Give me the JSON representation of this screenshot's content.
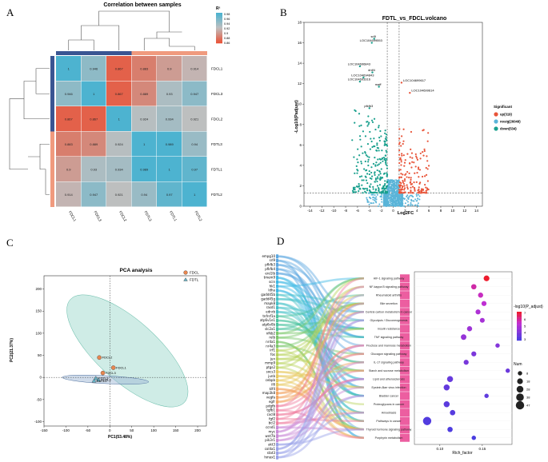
{
  "panels": {
    "A": "A",
    "B": "B",
    "C": "C",
    "D": "D"
  },
  "chart_data": [
    {
      "type": "heatmap",
      "title": "Correlation between samples",
      "legend_title": "R²",
      "legend_ticks": [
        "0.98",
        "0.96",
        "0.94",
        "0.92",
        "0.9",
        "0.88",
        "0.86"
      ],
      "rows": [
        "FDCL1",
        "FDCL3",
        "FDCL2",
        "FDTL3",
        "FDTL1",
        "FDTL2"
      ],
      "cols": [
        "FDCL1",
        "FDCL3",
        "FDCL2",
        "FDTL3",
        "FDTL1",
        "FDTL2"
      ],
      "values": [
        [
          1,
          0.946,
          0.867,
          0.883,
          0.9,
          0.914
        ],
        [
          0.946,
          1,
          0.867,
          0.889,
          0.93,
          0.947
        ],
        [
          0.867,
          0.867,
          1,
          0.924,
          0.934,
          0.921
        ],
        [
          0.883,
          0.889,
          0.924,
          1,
          0.989,
          0.94
        ],
        [
          0.9,
          0.93,
          0.934,
          0.989,
          1,
          0.97
        ],
        [
          0.914,
          0.947,
          0.921,
          0.94,
          0.97,
          1
        ]
      ],
      "colors": {
        "high": "#4db3d0",
        "mid": "#bfbfbf",
        "low": "#e8553a",
        "group1": "#3a5592",
        "group2": "#f09a7e"
      }
    },
    {
      "type": "scatter",
      "title": "FDTL_vs_FDCL.volcano",
      "xlabel": "Log2FC",
      "ylabel": "-Log10(Padjust)",
      "xlim": [
        -15,
        15
      ],
      "ylim": [
        0,
        18
      ],
      "xticks": [
        "-14",
        "-12",
        "-10",
        "-8",
        "-6",
        "-4",
        "-2",
        "0",
        "2",
        "4",
        "6",
        "8",
        "10",
        "12",
        "14"
      ],
      "yticks": [
        "0",
        "2",
        "4",
        "6",
        "8",
        "10",
        "12",
        "14",
        "16",
        "18"
      ],
      "legend_title": "Significant",
      "legend": [
        {
          "label": "up(319)",
          "color": "#e8553a"
        },
        {
          "label": "nosig(26049)",
          "color": "#5ab4d8"
        },
        {
          "label": "down(534)",
          "color": "#1aa08e"
        }
      ],
      "annotations": [
        {
          "text": "srl9",
          "x": -3.2,
          "y": 16.4
        },
        {
          "text": "LOC104699553",
          "x": -3.6,
          "y": 16.0
        },
        {
          "text": "LOC104696843",
          "x": -5.6,
          "y": 13.7
        },
        {
          "text": "dnlf4",
          "x": -3.5,
          "y": 13.1
        },
        {
          "text": "LOC104694843",
          "x": -5.0,
          "y": 12.6
        },
        {
          "text": "LOC104693316",
          "x": -5.6,
          "y": 12.2
        },
        {
          "text": "maff",
          "x": -2.4,
          "y": 11.7
        },
        {
          "text": "LOC104699617",
          "x": 1.4,
          "y": 12.1
        },
        {
          "text": "LOC104699614",
          "x": 2.8,
          "y": 11.1
        },
        {
          "text": "pfkfb3",
          "x": -4.0,
          "y": 9.6
        }
      ]
    },
    {
      "type": "scatter",
      "title": "PCA analysis",
      "xlabel": "PC1(53.48%)",
      "ylabel": "PC2(21.37%)",
      "xlim": [
        -150,
        220
      ],
      "ylim": [
        -110,
        230
      ],
      "xticks": [
        "-150",
        "-100",
        "-50",
        "0",
        "50",
        "100",
        "150",
        "200"
      ],
      "yticks": [
        "-100",
        "-50",
        "0",
        "50",
        "100",
        "150",
        "200"
      ],
      "legend": [
        {
          "label": "FDCL",
          "color": "#e8864f"
        },
        {
          "label": "FDTL",
          "color": "#64b3c7"
        }
      ],
      "points": [
        {
          "label": "FDCL2",
          "group": "FDCL",
          "x": -24,
          "y": 45
        },
        {
          "label": "FDCL1",
          "group": "FDCL",
          "x": 8,
          "y": 22
        },
        {
          "label": "FDCL3",
          "group": "FDCL",
          "x": -16,
          "y": 10
        },
        {
          "label": "FDTL3",
          "group": "FDTL",
          "x": -32,
          "y": -2
        },
        {
          "label": "FDTL2",
          "group": "FDTL",
          "x": -26,
          "y": -6
        },
        {
          "label": "FDTL1",
          "group": "FDTL",
          "x": -36,
          "y": -8
        }
      ]
    },
    {
      "type": "scatter",
      "subtype": "sankey-bubble",
      "xlabel": "Rich_factor",
      "xticks": [
        "0.10",
        "0.15"
      ],
      "legend_color_title": "-log10(P_adjust)",
      "legend_color_ticks": [
        "7",
        "6",
        "5",
        "4",
        "3"
      ],
      "legend_size_title": "Num",
      "legend_size_ticks": [
        "8",
        "18",
        "28",
        "38",
        "47"
      ],
      "pathways": [
        {
          "name": "HIF-1 signaling pathway",
          "rich": 0.155,
          "num": 18,
          "p": 7
        },
        {
          "name": "NF-kappa B signaling pathway",
          "rich": 0.14,
          "num": 14,
          "p": 5.6
        },
        {
          "name": "Rheumatoid arthritis",
          "rich": 0.148,
          "num": 13,
          "p": 5.3
        },
        {
          "name": "Bile secretion",
          "rich": 0.152,
          "num": 12,
          "p": 5.0
        },
        {
          "name": "Central carbon metabolism in cancer",
          "rich": 0.145,
          "num": 12,
          "p": 4.6
        },
        {
          "name": "Glycolysis / Gluconeogenesis",
          "rich": 0.15,
          "num": 11,
          "p": 4.4
        },
        {
          "name": "Insulin resistance",
          "rich": 0.135,
          "num": 13,
          "p": 4.2
        },
        {
          "name": "TNF signaling pathway",
          "rich": 0.128,
          "num": 16,
          "p": 4.0
        },
        {
          "name": "Fructose and mannose metabolism",
          "rich": 0.168,
          "num": 8,
          "p": 3.6
        },
        {
          "name": "Glucagon signaling pathway",
          "rich": 0.14,
          "num": 12,
          "p": 3.4
        },
        {
          "name": "IL-17 signaling pathway",
          "rich": 0.131,
          "num": 12,
          "p": 3.3
        },
        {
          "name": "Starch and sucrose metabolism",
          "rich": 0.18,
          "num": 8,
          "p": 3.0
        },
        {
          "name": "Lipid and atherosclerosis",
          "rich": 0.112,
          "num": 20,
          "p": 2.9
        },
        {
          "name": "Epstein-Barr virus infection",
          "rich": 0.108,
          "num": 20,
          "p": 2.8
        },
        {
          "name": "Bladder cancer",
          "rich": 0.155,
          "num": 8,
          "p": 2.7
        },
        {
          "name": "Proteoglycans in cancer",
          "rich": 0.108,
          "num": 20,
          "p": 2.6
        },
        {
          "name": "Amoebiasis",
          "rich": 0.115,
          "num": 15,
          "p": 2.5
        },
        {
          "name": "Pathways in cancer",
          "rich": 0.085,
          "num": 47,
          "p": 2.4
        },
        {
          "name": "Thyroid hormone signaling pathway",
          "rich": 0.112,
          "num": 14,
          "p": 2.3
        },
        {
          "name": "Porphyrin metabolism",
          "rich": 0.14,
          "num": 8,
          "p": 2.2
        }
      ],
      "genes": [
        "empg10",
        "srl9",
        "pfkfb3",
        "pfkfb4",
        "ero1lb",
        "tmem9",
        "scin",
        "hk1",
        "ldha",
        "gadd45b",
        "gadd45g",
        "mapk8",
        "rasd1",
        "ednrb",
        "tnfrsf1a",
        "atp6v1e1",
        "atp6v0b",
        "slc2a1",
        "nfkb2",
        "relb",
        "nr4a1",
        "nr4a3",
        "irf1",
        "fos",
        "jun",
        "mmp9",
        "ptgs2",
        "socs3",
        "junb",
        "cebpb",
        "il6",
        "klf4",
        "map3k8",
        "vegfa",
        "egfr",
        "pdgfb",
        "tgfb1",
        "cxcl8",
        "fgf2",
        "bcl2",
        "ccnd1",
        "myc",
        "wnt7b",
        "pik3r1",
        "akt3",
        "col4a1",
        "stat3",
        "hmox1"
      ]
    }
  ]
}
